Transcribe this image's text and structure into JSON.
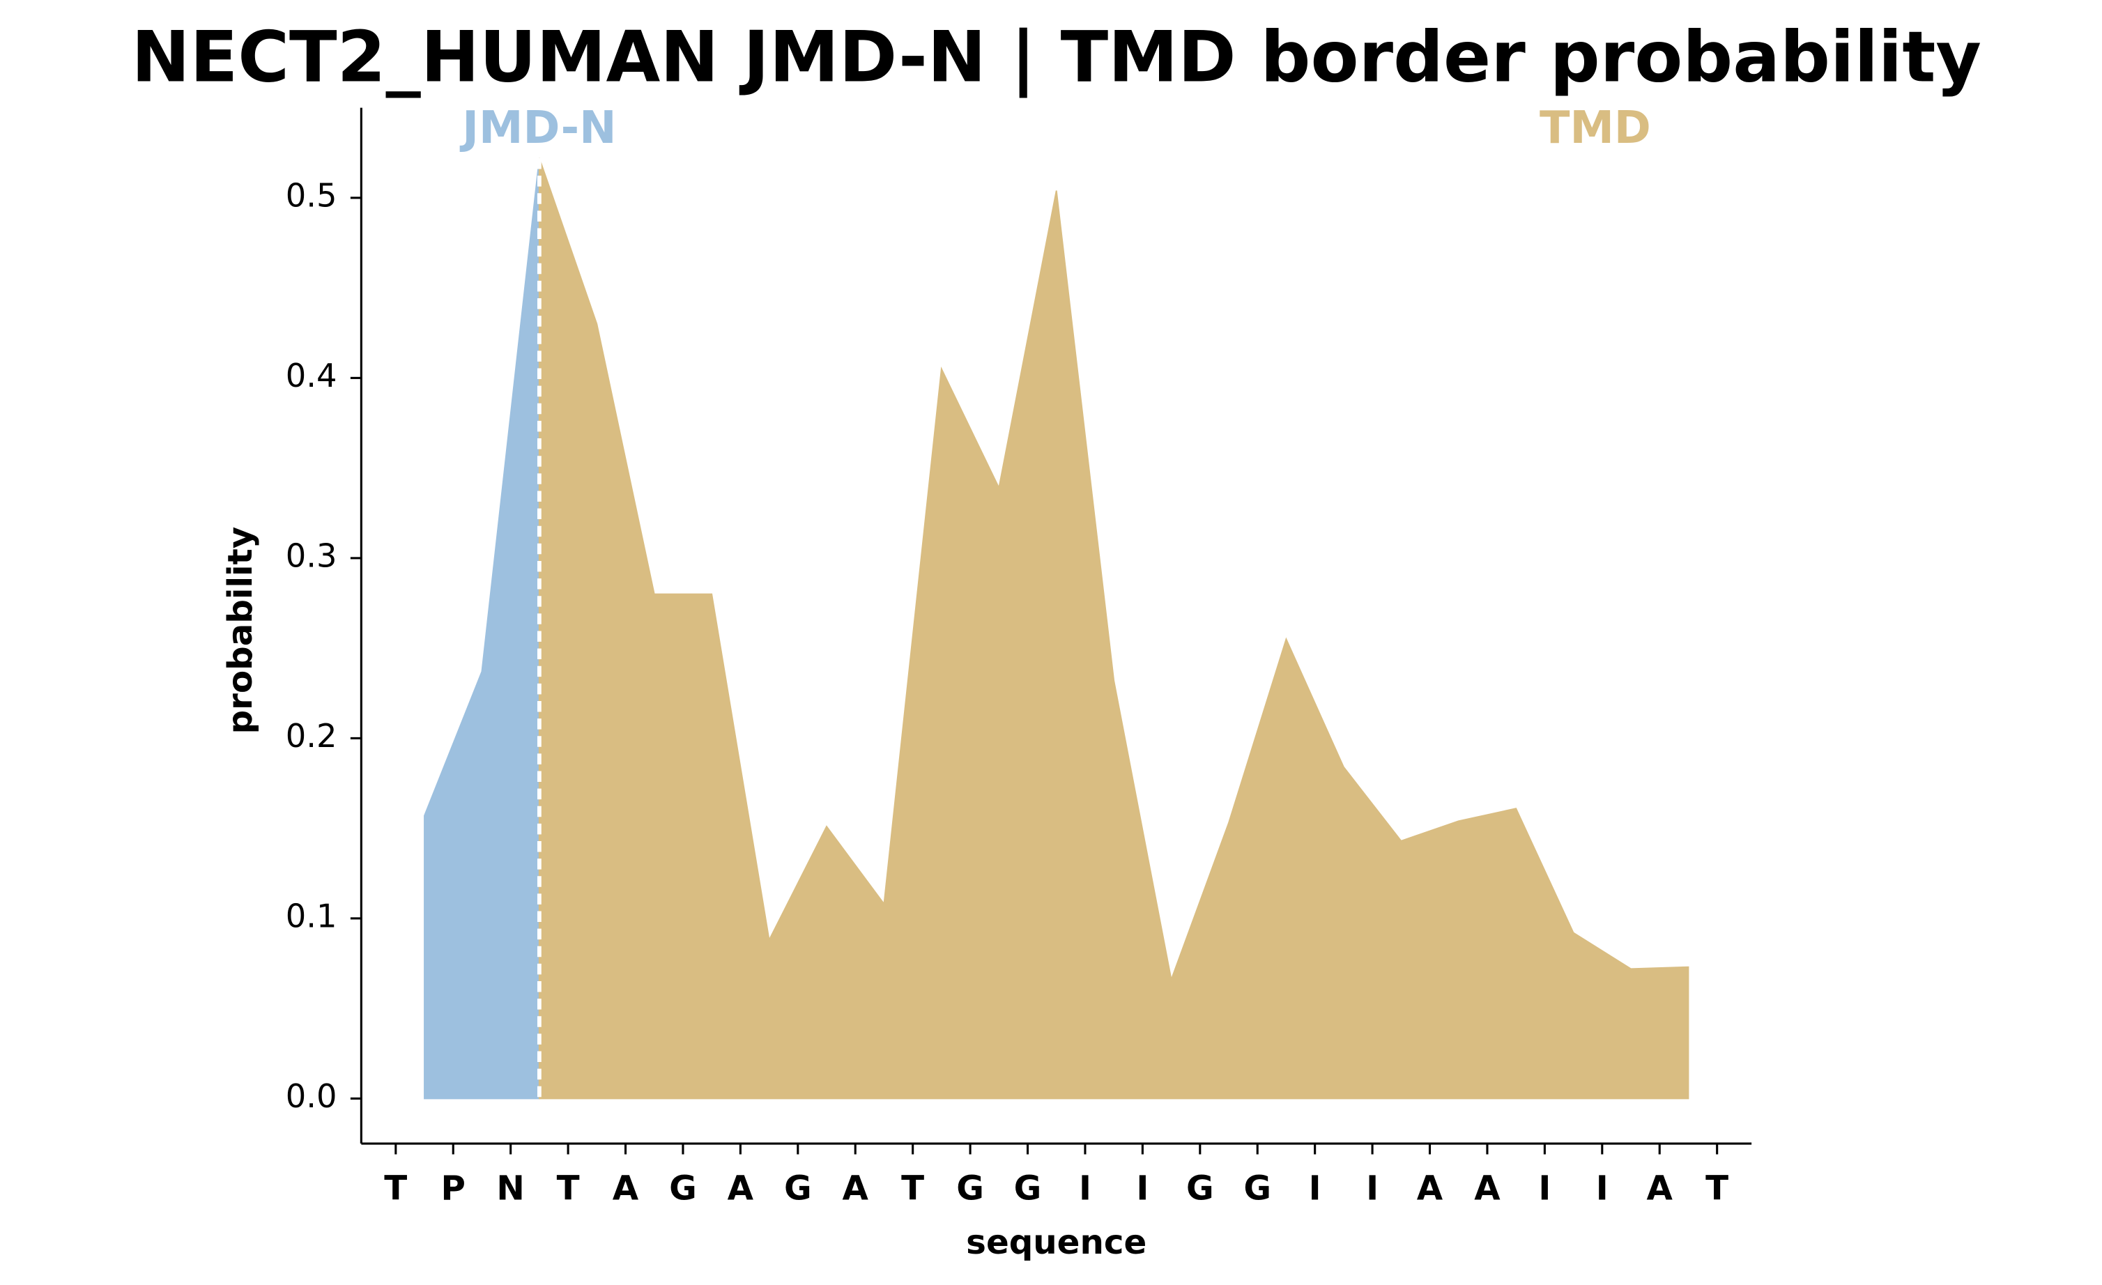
{
  "chart_data": {
    "type": "area",
    "title": "NECT2_HUMAN JMD-N | TMD border probability",
    "x_label": "sequence",
    "y_label": "probability",
    "categories": [
      "T",
      "P",
      "N",
      "T",
      "A",
      "G",
      "A",
      "G",
      "A",
      "T",
      "G",
      "G",
      "I",
      "I",
      "G",
      "G",
      "I",
      "I",
      "A",
      "A",
      "I",
      "I",
      "A",
      "T"
    ],
    "x": [
      0.5,
      1.5,
      2.5,
      3.5,
      4.5,
      5.5,
      6.5,
      7.5,
      8.5,
      9.5,
      10.5,
      11.5,
      12.5,
      13.5,
      14.5,
      15.5,
      16.5,
      17.5,
      18.5,
      19.5,
      20.5,
      21.5,
      22.5
    ],
    "series": [
      {
        "name": "JMD-N",
        "color": "#9dc0df",
        "values": [
          0.157,
          0.237,
          0.522,
          null,
          null,
          null,
          null,
          null,
          null,
          null,
          null,
          null,
          null,
          null,
          null,
          null,
          null,
          null,
          null,
          null,
          null,
          null,
          null
        ]
      },
      {
        "name": "TMD",
        "color": "#d9bd82",
        "values": [
          null,
          null,
          0.522,
          0.43,
          0.28,
          0.28,
          0.088,
          0.151,
          0.108,
          0.405,
          0.339,
          0.504,
          0.232,
          0.066,
          0.153,
          0.255,
          0.184,
          0.143,
          0.154,
          0.161,
          0.092,
          0.072,
          0.073
        ]
      }
    ],
    "xlim": [
      -0.6,
      23.6
    ],
    "ylim": [
      -0.025,
      0.55
    ],
    "yticks": [
      {
        "value": 0,
        "label": "0.0"
      },
      0.1,
      0.2,
      0.3,
      0.4,
      0.5
    ]
  }
}
